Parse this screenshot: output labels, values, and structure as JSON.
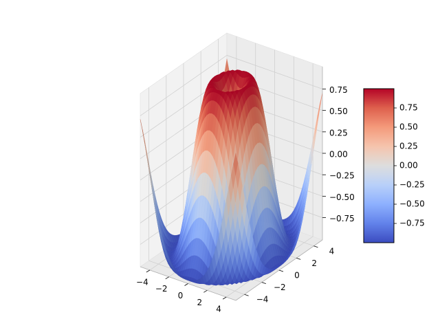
{
  "chart_data": {
    "type": "surface",
    "function": "z = sin(sqrt(x^2 + y^2))",
    "x_range": [
      -5,
      5
    ],
    "y_range": [
      -5,
      5
    ],
    "grid_step": 0.25,
    "zlim": [
      -1.01,
      1.01
    ],
    "colormap": "coolwarm",
    "colorbar": {
      "range": [
        -1.0,
        1.0
      ],
      "ticks": [
        0.75,
        0.5,
        0.25,
        0.0,
        -0.25,
        -0.5,
        -0.75
      ],
      "tick_labels": [
        "0.75",
        "0.50",
        "0.25",
        "0.00",
        "−0.25",
        "−0.50",
        "−0.75"
      ]
    },
    "x_ticks": [
      -4,
      -2,
      0,
      2,
      4
    ],
    "x_tick_labels": [
      "−4",
      "−2",
      "0",
      "2",
      "4"
    ],
    "y_ticks": [
      -4,
      -2,
      0,
      2,
      4
    ],
    "y_tick_labels": [
      "−4",
      "−2",
      "0",
      "2",
      "4"
    ],
    "z_ticks": [
      0.75,
      0.5,
      0.25,
      0.0,
      -0.25,
      -0.5,
      -0.75
    ],
    "z_tick_labels": [
      "0.75",
      "0.50",
      "0.25",
      "0.00",
      "−0.25",
      "−0.50",
      "−0.75"
    ],
    "grid": true,
    "colors": {
      "pane": "#f2f2f2",
      "grid": "#d0d0d0",
      "axis": "#000000"
    }
  }
}
